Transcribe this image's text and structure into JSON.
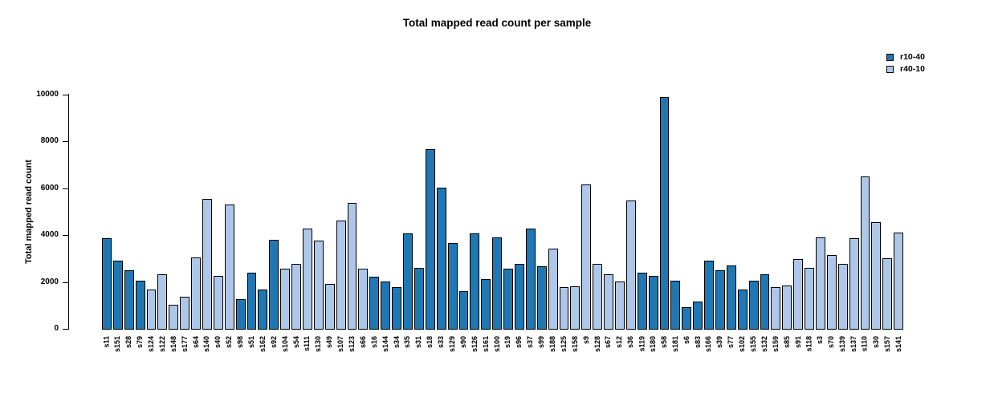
{
  "title": "Total mapped read count per sample",
  "chart_data": {
    "type": "bar",
    "title": "Total mapped read count per sample",
    "xlabel": "",
    "ylabel": "Total mapped read count",
    "ylim": [
      0,
      10000
    ],
    "yticks": [
      0,
      2000,
      4000,
      6000,
      8000,
      10000
    ],
    "grid": false,
    "legend_position": "top-right",
    "legend": [
      {
        "label": "r10-40",
        "color": "#1f77b4"
      },
      {
        "label": "r40-10",
        "color": "#aec7e8"
      }
    ],
    "series_colors": {
      "r10-40": "#1f77b4",
      "r40-10": "#aec7e8"
    },
    "categories": [
      "s11",
      "s151",
      "s28",
      "s79",
      "s124",
      "s122",
      "s148",
      "s177",
      "s64",
      "s140",
      "s40",
      "s52",
      "s98",
      "s51",
      "s162",
      "s92",
      "s104",
      "s54",
      "s111",
      "s130",
      "s49",
      "s107",
      "s123",
      "s66",
      "s16",
      "s144",
      "s34",
      "s35",
      "s31",
      "s18",
      "s33",
      "s129",
      "s90",
      "s126",
      "s161",
      "s100",
      "s19",
      "s96",
      "s37",
      "s99",
      "s188",
      "s125",
      "s158",
      "s9",
      "s128",
      "s67",
      "s12",
      "s36",
      "s119",
      "s180",
      "s58",
      "s181",
      "s6",
      "s83",
      "s166",
      "s39",
      "s77",
      "s102",
      "s155",
      "s132",
      "s159",
      "s85",
      "s91",
      "s118",
      "s3",
      "s70",
      "s139",
      "s137",
      "s110",
      "s30",
      "s157",
      "s141"
    ],
    "values": [
      3900,
      2950,
      2550,
      2100,
      1700,
      2350,
      1050,
      1400,
      3100,
      5600,
      2300,
      5350,
      1300,
      2450,
      1700,
      3850,
      2600,
      2800,
      4300,
      3800,
      1950,
      4650,
      5400,
      2600,
      2250,
      2050,
      1800,
      4100,
      2650,
      7700,
      6050,
      3700,
      1650,
      4100,
      2150,
      3950,
      2600,
      2800,
      4300,
      2700,
      3450,
      1800,
      1850,
      6200,
      2800,
      2350,
      2050,
      5500,
      2450,
      2300,
      9950,
      2100,
      950,
      1200,
      2950,
      2550,
      2750,
      1700,
      2100,
      2350,
      1800,
      1900,
      3000,
      2650,
      3950,
      3200,
      2800,
      3900,
      6550,
      4600,
      3050,
      4150
    ],
    "groups": [
      "r10-40",
      "r10-40",
      "r10-40",
      "r10-40",
      "r40-10",
      "r40-10",
      "r40-10",
      "r40-10",
      "r40-10",
      "r40-10",
      "r40-10",
      "r40-10",
      "r10-40",
      "r10-40",
      "r10-40",
      "r10-40",
      "r40-10",
      "r40-10",
      "r40-10",
      "r40-10",
      "r40-10",
      "r40-10",
      "r40-10",
      "r40-10",
      "r10-40",
      "r10-40",
      "r10-40",
      "r10-40",
      "r10-40",
      "r10-40",
      "r10-40",
      "r10-40",
      "r10-40",
      "r10-40",
      "r10-40",
      "r10-40",
      "r10-40",
      "r10-40",
      "r10-40",
      "r10-40",
      "r40-10",
      "r40-10",
      "r40-10",
      "r40-10",
      "r40-10",
      "r40-10",
      "r40-10",
      "r40-10",
      "r10-40",
      "r10-40",
      "r10-40",
      "r10-40",
      "r10-40",
      "r10-40",
      "r10-40",
      "r10-40",
      "r10-40",
      "r10-40",
      "r10-40",
      "r10-40",
      "r40-10",
      "r40-10",
      "r40-10",
      "r40-10",
      "r40-10",
      "r40-10",
      "r40-10",
      "r40-10",
      "r40-10",
      "r40-10",
      "r40-10",
      "r40-10"
    ]
  }
}
